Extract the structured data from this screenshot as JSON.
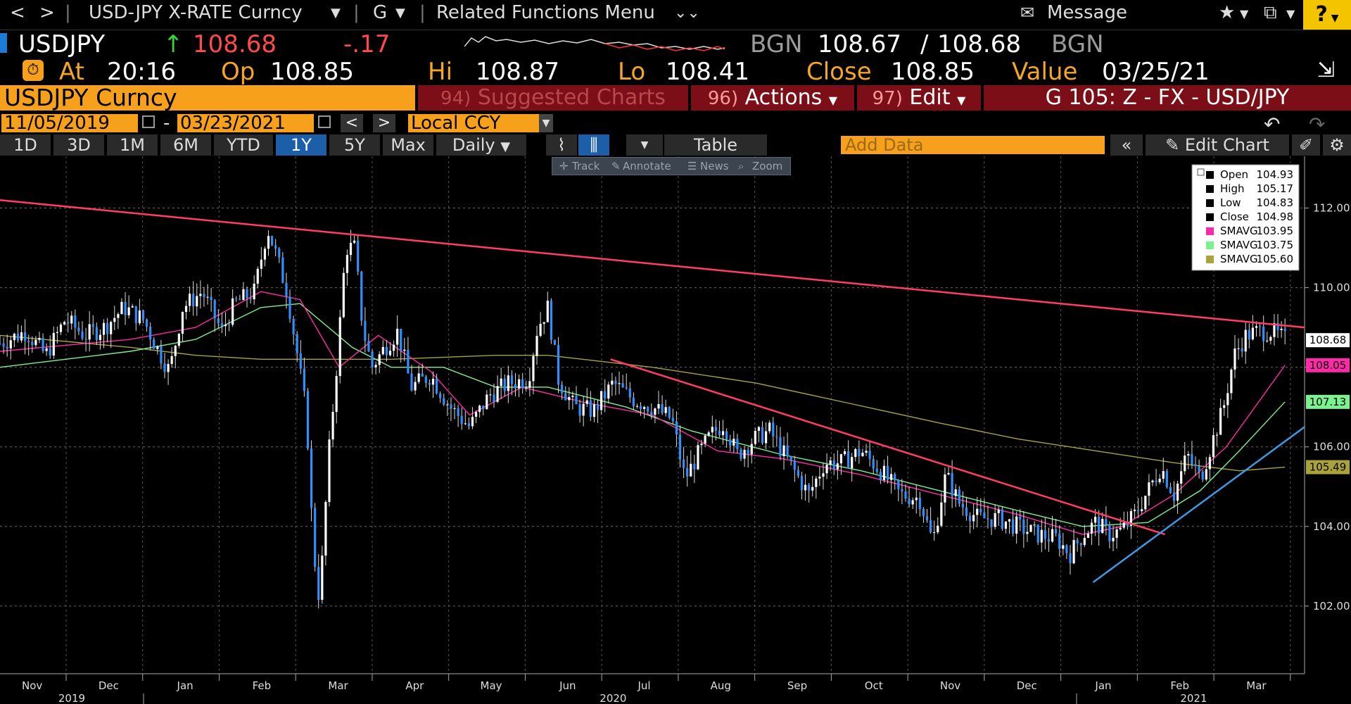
{
  "nav": {
    "back": "<",
    "forward": ">",
    "security": "USD-JPY X-RATE Curncy",
    "function": "G",
    "related": "Related Functions Menu",
    "message": "Message",
    "help": "?"
  },
  "quote": {
    "ticker": "USDJPY",
    "last": "108.68",
    "change": "-.17",
    "bid_source": "BGN",
    "bid": "108.67",
    "ask": "108.68",
    "ask_source": "BGN",
    "at_label": "At",
    "time": "20:16",
    "open_label": "Op",
    "open": "108.85",
    "high_label": "Hi",
    "high": "108.87",
    "low_label": "Lo",
    "low": "108.41",
    "close_label": "Close",
    "close": "108.85",
    "value_label": "Value",
    "value_date": "03/25/21"
  },
  "titlebar": {
    "title": "USDJPY Curncy",
    "suggested_num": "94)",
    "suggested": "Suggested Charts",
    "actions_num": "96)",
    "actions": "Actions",
    "edit_num": "97)",
    "edit": "Edit",
    "template": "G 105: Z - FX - USD/JPY"
  },
  "datebar": {
    "start": "11/05/2019",
    "dash": "-",
    "end": "03/23/2021",
    "currency": "Local CCY"
  },
  "rangebar": {
    "buttons": [
      "1D",
      "3D",
      "1M",
      "6M",
      "YTD",
      "1Y",
      "5Y",
      "Max"
    ],
    "selected": "1Y",
    "period": "Daily",
    "table": "Table",
    "add_data_placeholder": "Add Data",
    "edit_chart": "Edit Chart"
  },
  "tools": [
    "Track",
    "Annotate",
    "News",
    "Zoom"
  ],
  "legend": [
    {
      "label": "Open",
      "value": "104.93",
      "color": "#000000"
    },
    {
      "label": "High",
      "value": "105.17",
      "color": "#000000"
    },
    {
      "label": "Low",
      "value": "104.83",
      "color": "#000000"
    },
    {
      "label": "Close",
      "value": "104.98",
      "color": "#000000"
    },
    {
      "label": "SMAVG",
      "value": "103.95",
      "color": "#ff2aa8"
    },
    {
      "label": "SMAVG",
      "value": "103.75",
      "color": "#7cf28e"
    },
    {
      "label": "SMAVG",
      "value": "105.60",
      "color": "#aaa23a"
    }
  ],
  "chart_data": {
    "type": "candlestick",
    "ylim": [
      100.3,
      113.3
    ],
    "y_ticks": [
      102,
      104,
      106,
      108,
      110,
      112
    ],
    "y_tick_labels": [
      "102.00",
      "104.00",
      "106.00",
      "108.00",
      "110.00",
      "112.00"
    ],
    "x_months": [
      "Nov",
      "Dec",
      "Jan",
      "Feb",
      "Mar",
      "Apr",
      "May",
      "Jun",
      "Jul",
      "Aug",
      "Sep",
      "Oct",
      "Nov",
      "Dec",
      "Jan",
      "Feb",
      "Mar"
    ],
    "x_years": [
      "2019",
      "2020",
      "2021"
    ],
    "price_tags": [
      {
        "value": "108.68",
        "color": "#ffffff",
        "text_color": "#000000"
      },
      {
        "value": "108.05",
        "color": "#ff2aa8",
        "text_color": "#000000"
      },
      {
        "value": "107.13",
        "color": "#7cf28e",
        "text_color": "#000000"
      },
      {
        "value": "105.49",
        "color": "#aaa23a",
        "text_color": "#000000"
      }
    ],
    "close_series": [
      {
        "t": 0.0,
        "v": 108.6
      },
      {
        "t": 0.02,
        "v": 108.9
      },
      {
        "t": 0.035,
        "v": 108.3
      },
      {
        "t": 0.05,
        "v": 109.2
      },
      {
        "t": 0.065,
        "v": 108.8
      },
      {
        "t": 0.08,
        "v": 109.0
      },
      {
        "t": 0.095,
        "v": 109.5
      },
      {
        "t": 0.11,
        "v": 109.2
      },
      {
        "t": 0.12,
        "v": 108.5
      },
      {
        "t": 0.13,
        "v": 107.9
      },
      {
        "t": 0.14,
        "v": 109.5
      },
      {
        "t": 0.155,
        "v": 109.9
      },
      {
        "t": 0.17,
        "v": 108.9
      },
      {
        "t": 0.18,
        "v": 109.6
      },
      {
        "t": 0.195,
        "v": 109.9
      },
      {
        "t": 0.205,
        "v": 111.5
      },
      {
        "t": 0.21,
        "v": 111.0
      },
      {
        "t": 0.22,
        "v": 109.9
      },
      {
        "t": 0.228,
        "v": 108.3
      },
      {
        "t": 0.235,
        "v": 106.8
      },
      {
        "t": 0.24,
        "v": 103.5
      },
      {
        "t": 0.245,
        "v": 102.1
      },
      {
        "t": 0.252,
        "v": 105.8
      },
      {
        "t": 0.258,
        "v": 108.0
      },
      {
        "t": 0.265,
        "v": 111.0
      },
      {
        "t": 0.272,
        "v": 111.0
      },
      {
        "t": 0.278,
        "v": 109.0
      },
      {
        "t": 0.285,
        "v": 108.0
      },
      {
        "t": 0.295,
        "v": 108.5
      },
      {
        "t": 0.305,
        "v": 108.9
      },
      {
        "t": 0.315,
        "v": 107.5
      },
      {
        "t": 0.33,
        "v": 107.8
      },
      {
        "t": 0.345,
        "v": 107.0
      },
      {
        "t": 0.36,
        "v": 106.5
      },
      {
        "t": 0.375,
        "v": 107.3
      },
      {
        "t": 0.39,
        "v": 107.6
      },
      {
        "t": 0.405,
        "v": 107.7
      },
      {
        "t": 0.412,
        "v": 109.0
      },
      {
        "t": 0.42,
        "v": 109.5
      },
      {
        "t": 0.428,
        "v": 107.7
      },
      {
        "t": 0.44,
        "v": 107.0
      },
      {
        "t": 0.455,
        "v": 106.9
      },
      {
        "t": 0.47,
        "v": 107.6
      },
      {
        "t": 0.485,
        "v": 107.2
      },
      {
        "t": 0.5,
        "v": 107.0
      },
      {
        "t": 0.515,
        "v": 106.7
      },
      {
        "t": 0.525,
        "v": 105.2
      },
      {
        "t": 0.535,
        "v": 105.8
      },
      {
        "t": 0.545,
        "v": 106.3
      },
      {
        "t": 0.555,
        "v": 106.6
      },
      {
        "t": 0.565,
        "v": 105.8
      },
      {
        "t": 0.578,
        "v": 106.2
      },
      {
        "t": 0.59,
        "v": 106.4
      },
      {
        "t": 0.605,
        "v": 105.6
      },
      {
        "t": 0.62,
        "v": 104.8
      },
      {
        "t": 0.632,
        "v": 105.6
      },
      {
        "t": 0.645,
        "v": 105.6
      },
      {
        "t": 0.66,
        "v": 105.9
      },
      {
        "t": 0.675,
        "v": 105.4
      },
      {
        "t": 0.69,
        "v": 104.8
      },
      {
        "t": 0.705,
        "v": 104.7
      },
      {
        "t": 0.715,
        "v": 103.6
      },
      {
        "t": 0.725,
        "v": 105.3
      },
      {
        "t": 0.735,
        "v": 104.6
      },
      {
        "t": 0.75,
        "v": 104.2
      },
      {
        "t": 0.765,
        "v": 104.2
      },
      {
        "t": 0.78,
        "v": 104.0
      },
      {
        "t": 0.795,
        "v": 103.8
      },
      {
        "t": 0.81,
        "v": 103.7
      },
      {
        "t": 0.82,
        "v": 103.3
      },
      {
        "t": 0.83,
        "v": 103.8
      },
      {
        "t": 0.84,
        "v": 104.1
      },
      {
        "t": 0.85,
        "v": 103.8
      },
      {
        "t": 0.86,
        "v": 103.9
      },
      {
        "t": 0.87,
        "v": 104.3
      },
      {
        "t": 0.88,
        "v": 104.9
      },
      {
        "t": 0.89,
        "v": 105.5
      },
      {
        "t": 0.9,
        "v": 104.8
      },
      {
        "t": 0.91,
        "v": 105.8
      },
      {
        "t": 0.92,
        "v": 105.2
      },
      {
        "t": 0.93,
        "v": 106.2
      },
      {
        "t": 0.938,
        "v": 107.0
      },
      {
        "t": 0.946,
        "v": 108.3
      },
      {
        "t": 0.955,
        "v": 108.8
      },
      {
        "t": 0.965,
        "v": 108.9
      },
      {
        "t": 0.975,
        "v": 108.9
      },
      {
        "t": 0.985,
        "v": 108.7
      }
    ],
    "sma_pink": [
      {
        "t": 0.0,
        "v": 108.4
      },
      {
        "t": 0.1,
        "v": 108.7
      },
      {
        "t": 0.15,
        "v": 109.0
      },
      {
        "t": 0.2,
        "v": 109.9
      },
      {
        "t": 0.23,
        "v": 109.7
      },
      {
        "t": 0.26,
        "v": 108.0
      },
      {
        "t": 0.29,
        "v": 108.8
      },
      {
        "t": 0.33,
        "v": 107.9
      },
      {
        "t": 0.36,
        "v": 106.8
      },
      {
        "t": 0.4,
        "v": 107.5
      },
      {
        "t": 0.45,
        "v": 107.1
      },
      {
        "t": 0.5,
        "v": 106.8
      },
      {
        "t": 0.55,
        "v": 105.9
      },
      {
        "t": 0.6,
        "v": 105.7
      },
      {
        "t": 0.66,
        "v": 105.3
      },
      {
        "t": 0.72,
        "v": 104.8
      },
      {
        "t": 0.78,
        "v": 104.3
      },
      {
        "t": 0.83,
        "v": 103.8
      },
      {
        "t": 0.86,
        "v": 104.0
      },
      {
        "t": 0.9,
        "v": 104.8
      },
      {
        "t": 0.94,
        "v": 106.0
      },
      {
        "t": 0.985,
        "v": 108.05
      }
    ],
    "sma_green": [
      {
        "t": 0.0,
        "v": 108.0
      },
      {
        "t": 0.1,
        "v": 108.4
      },
      {
        "t": 0.15,
        "v": 108.7
      },
      {
        "t": 0.2,
        "v": 109.5
      },
      {
        "t": 0.23,
        "v": 109.6
      },
      {
        "t": 0.27,
        "v": 108.5
      },
      {
        "t": 0.3,
        "v": 108.0
      },
      {
        "t": 0.34,
        "v": 108.0
      },
      {
        "t": 0.38,
        "v": 107.5
      },
      {
        "t": 0.42,
        "v": 107.5
      },
      {
        "t": 0.48,
        "v": 107.0
      },
      {
        "t": 0.53,
        "v": 106.4
      },
      {
        "t": 0.6,
        "v": 105.8
      },
      {
        "t": 0.66,
        "v": 105.4
      },
      {
        "t": 0.72,
        "v": 104.9
      },
      {
        "t": 0.78,
        "v": 104.4
      },
      {
        "t": 0.83,
        "v": 104.0
      },
      {
        "t": 0.88,
        "v": 104.1
      },
      {
        "t": 0.92,
        "v": 104.9
      },
      {
        "t": 0.95,
        "v": 105.9
      },
      {
        "t": 0.985,
        "v": 107.13
      }
    ],
    "sma_olive": [
      {
        "t": 0.0,
        "v": 108.8
      },
      {
        "t": 0.1,
        "v": 108.5
      },
      {
        "t": 0.15,
        "v": 108.3
      },
      {
        "t": 0.2,
        "v": 108.2
      },
      {
        "t": 0.3,
        "v": 108.2
      },
      {
        "t": 0.38,
        "v": 108.3
      },
      {
        "t": 0.42,
        "v": 108.3
      },
      {
        "t": 0.5,
        "v": 108.0
      },
      {
        "t": 0.58,
        "v": 107.6
      },
      {
        "t": 0.65,
        "v": 107.1
      },
      {
        "t": 0.72,
        "v": 106.6
      },
      {
        "t": 0.78,
        "v": 106.2
      },
      {
        "t": 0.84,
        "v": 105.9
      },
      {
        "t": 0.9,
        "v": 105.6
      },
      {
        "t": 0.95,
        "v": 105.4
      },
      {
        "t": 0.985,
        "v": 105.49
      }
    ],
    "trendlines": [
      {
        "color": "#ff3d66",
        "from": {
          "t": 0.0,
          "v": 112.2
        },
        "to": {
          "t": 1.0,
          "v": 109.0
        }
      },
      {
        "color": "#ff3d66",
        "from": {
          "t": 0.468,
          "v": 108.2
        },
        "to": {
          "t": 0.893,
          "v": 103.8
        }
      },
      {
        "color": "#3d9be6",
        "from": {
          "t": 0.838,
          "v": 102.6
        },
        "to": {
          "t": 1.0,
          "v": 106.5
        }
      }
    ]
  }
}
